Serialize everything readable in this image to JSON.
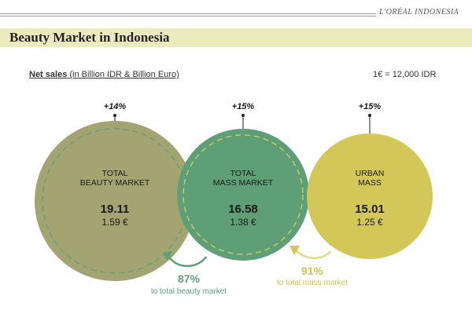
{
  "header": {
    "brand": "L'ORÉAL INDONESIA",
    "title": "Beauty Market in Indonesia"
  },
  "subtitle": {
    "main": "Net sales",
    "detail": " (in Billion IDR & Billion Euro)"
  },
  "exchange_rate": "1€ = 12,000 IDR",
  "markets": [
    {
      "growth": "+14%",
      "label_line1": "TOTAL",
      "label_line2": "BEAUTY MARKET",
      "value_idr": "19.11",
      "value_eur": "1.59 €",
      "color": "#a3a472"
    },
    {
      "growth": "+15%",
      "label_line1": "TOTAL",
      "label_line2": "MASS MARKET",
      "value_idr": "16.58",
      "value_eur": "1.38 €",
      "color": "#5f9f78"
    },
    {
      "growth": "+15%",
      "label_line1": "URBAN",
      "label_line2": "MASS",
      "value_idr": "15.01",
      "value_eur": "1.25 €",
      "color": "#d4c75a"
    }
  ],
  "shares": [
    {
      "pct": "87%",
      "label": "to total beauty market",
      "color": "#5f9f78"
    },
    {
      "pct": "91%",
      "label": "to total mass market",
      "color": "#cfc24f"
    }
  ]
}
